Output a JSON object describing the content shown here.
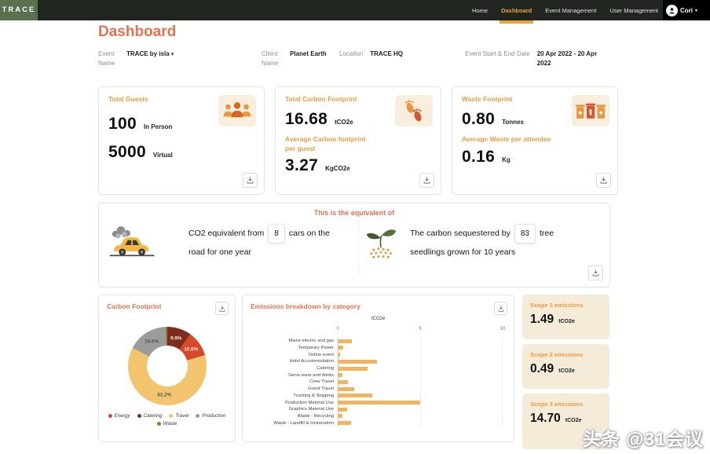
{
  "navbar": {
    "brand": "TRACE",
    "items": [
      {
        "label": "Home",
        "active": false
      },
      {
        "label": "Dashboard",
        "active": true
      },
      {
        "label": "Event Management",
        "active": false
      },
      {
        "label": "User Management",
        "active": false
      }
    ],
    "user": {
      "name": "Cori"
    }
  },
  "page": {
    "title": "Dashboard"
  },
  "filters": {
    "event_name": {
      "label": "Event Name",
      "value": "TRACE by isla"
    },
    "client_name": {
      "label": "Client Name",
      "value": "Planet Earth"
    },
    "location": {
      "label": "Location",
      "value": "TRACE HQ"
    },
    "dates": {
      "label": "Event Start & End Date",
      "value": "20 Apr 2022 - 20 Apr 2022"
    }
  },
  "stats": {
    "guests": {
      "title": "Total Guests",
      "rows": [
        {
          "value": "100",
          "unit": "In Person"
        },
        {
          "value": "5000",
          "unit": "Virtual"
        }
      ]
    },
    "carbon": {
      "title": "Total Carbon Footprint",
      "value": "16.68",
      "unit": "tCO2e",
      "sub_title": "Average Carbon footprint per guest",
      "sub_value": "3.27",
      "sub_unit": "KgCO2e"
    },
    "waste": {
      "title": "Waste Footprint",
      "value": "0.80",
      "unit": "Tonnes",
      "sub_title": "Average Waste per attendee",
      "sub_value": "0.16",
      "sub_unit": "Kg"
    }
  },
  "equivalents": {
    "title": "This is the equivalent of",
    "cars": {
      "text_before": "CO2 equivalent from",
      "value": "8",
      "text_after": "cars on the road for one year"
    },
    "trees": {
      "text_before": "The carbon sequestered by",
      "value": "83",
      "text_after": "tree seedlings grown for 10 years"
    }
  },
  "chart_data": [
    {
      "type": "pie",
      "title": "Carbon Footprint",
      "unit": "%",
      "slices": [
        {
          "label": "Catering",
          "value": 9.9,
          "color": "#7c2d1e"
        },
        {
          "label": "Energy",
          "value": 10.6,
          "color": "#d6492c"
        },
        {
          "label": "Travel",
          "value": 62.2,
          "color": "#f2c46d"
        },
        {
          "label": "Production",
          "value": 16.6,
          "color": "#9b9b9b"
        },
        {
          "label": "Waste",
          "value": 0.7,
          "color": "#8f7d33"
        }
      ],
      "legend_order": [
        "Energy",
        "Catering",
        "Travel",
        "Production",
        "Waste"
      ],
      "legend_position": "bottom"
    },
    {
      "type": "bar",
      "title": "Emissions breakdown by category",
      "orientation": "horizontal",
      "xlabel": "tCO2e",
      "xlim": [
        0,
        10
      ],
      "xticks": [
        0,
        5,
        10
      ],
      "categories": [
        "Mains electric and gas",
        "Temporary Power",
        "Online event",
        "Hotel Accommodation",
        "Catering",
        "Serve-ware and drinks",
        "Crew Travel",
        "Guest Travel",
        "Trucking & Shipping",
        "Production Material Use",
        "Graphics Material Use",
        "Waste - Recycling",
        "Waste - Landfill & Incineration"
      ],
      "values": [
        0.85,
        0.35,
        0.15,
        2.4,
        1.8,
        0.3,
        0.6,
        1.0,
        2.1,
        5.0,
        0.55,
        0.3,
        0.8
      ],
      "bar_color": "#f1b55f",
      "grid": true
    }
  ],
  "scopes": [
    {
      "title": "Scope 1 emissions",
      "value": "1.49",
      "unit": "tCO2e"
    },
    {
      "title": "Scope 2 emissions",
      "value": "0.49",
      "unit": "tCO2e"
    },
    {
      "title": "Scope 3 emissions",
      "value": "14.70",
      "unit": "tCO2e"
    }
  ],
  "watermark": "头条 @31会议",
  "colors": {
    "navbar_bg": "#20251f",
    "brand_green": "#59714f",
    "nav_active": "#e9a13b",
    "accent_coral": "#e0744f",
    "accent_orange": "#ee9b3f",
    "scope_card_bg": "#f5ebd9",
    "bar": "#f1b55f"
  }
}
